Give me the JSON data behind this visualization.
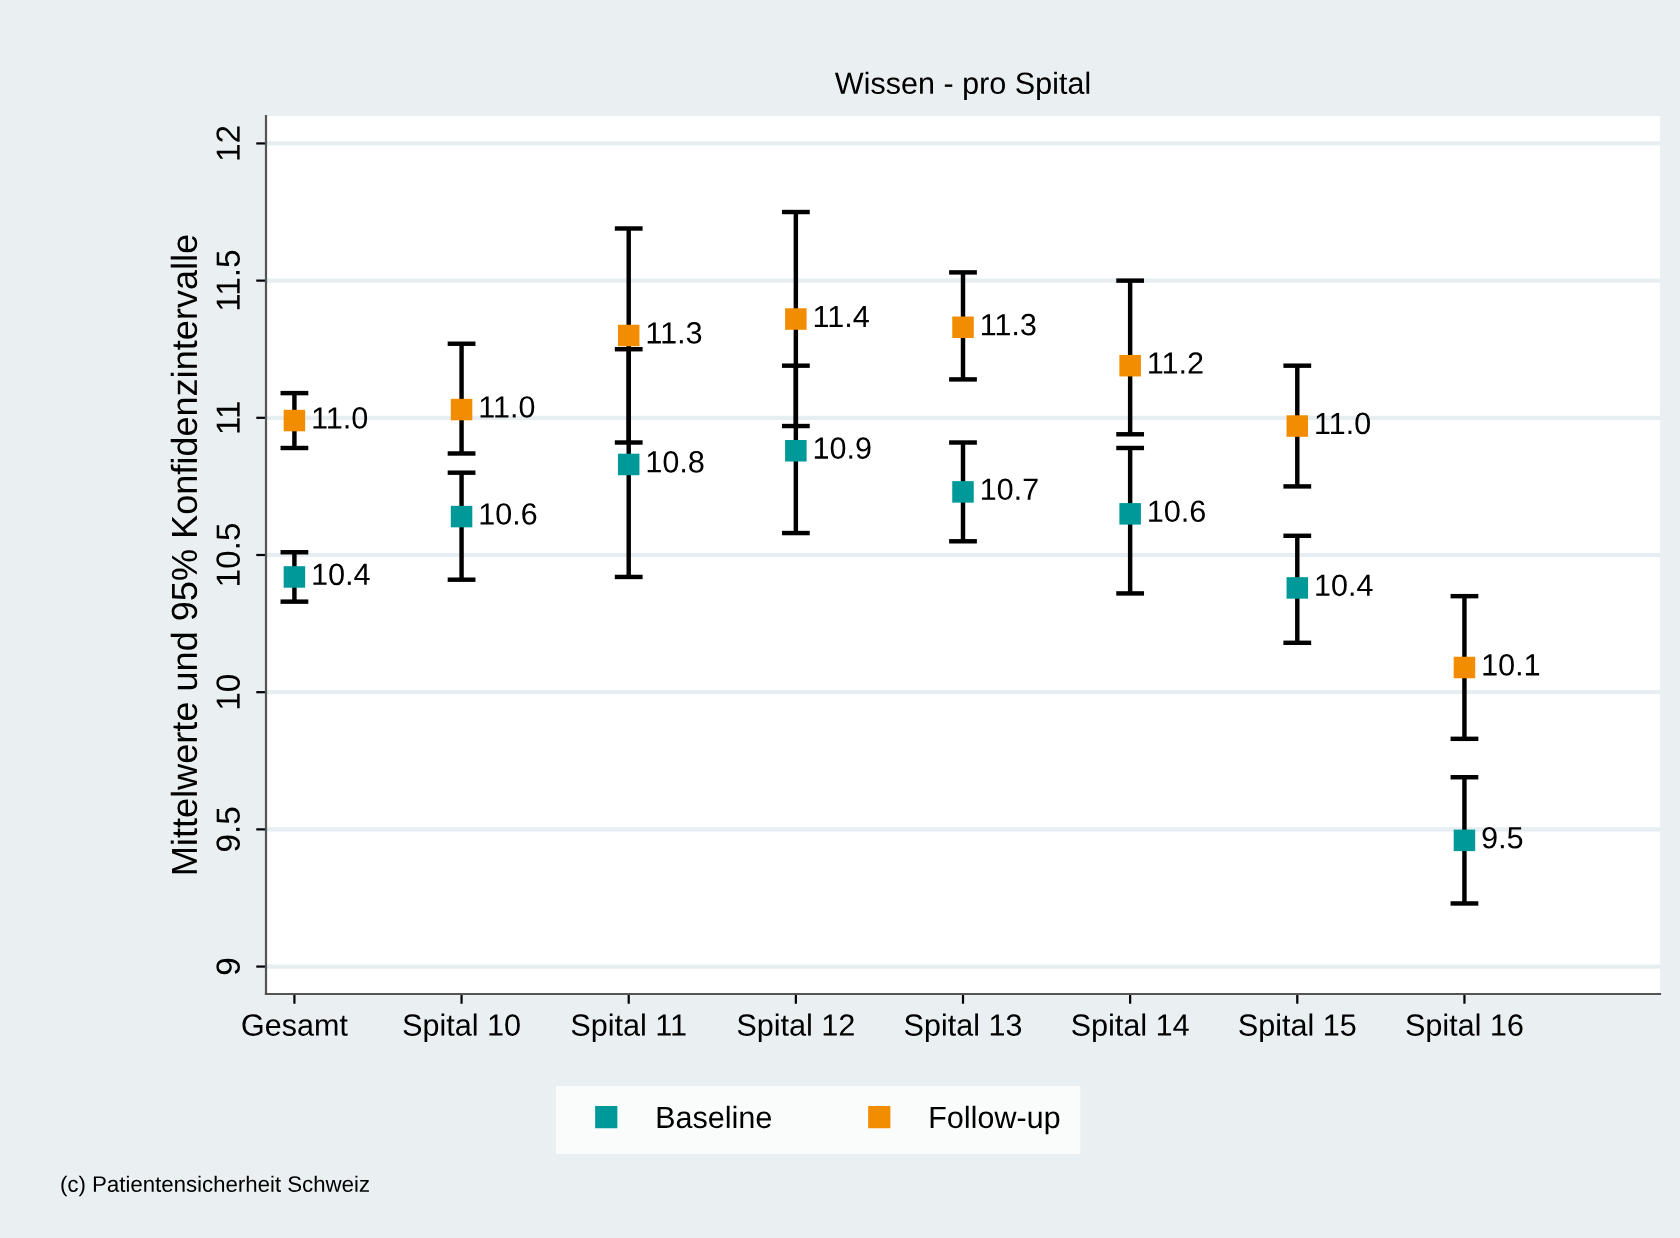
{
  "chart_data": {
    "type": "scatter",
    "title": "Wissen - pro Spital",
    "ylabel": "Mittelwerte und 95% Konfidenzintervalle",
    "categories": [
      "Gesamt",
      "Spital 10",
      "Spital 11",
      "Spital 12",
      "Spital 13",
      "Spital 14",
      "Spital 15",
      "Spital 16"
    ],
    "series": [
      {
        "name": "Baseline",
        "color": "#009999",
        "values": [
          10.42,
          10.64,
          10.83,
          10.88,
          10.73,
          10.65,
          10.38,
          9.46
        ],
        "errors": [
          [
            10.33,
            10.51
          ],
          [
            10.41,
            10.8
          ],
          [
            10.42,
            11.25
          ],
          [
            10.58,
            11.19
          ],
          [
            10.55,
            10.91
          ],
          [
            10.36,
            10.89
          ],
          [
            10.18,
            10.57
          ],
          [
            9.23,
            9.69
          ]
        ],
        "value_labels": [
          "10.4",
          "10.6",
          "10.8",
          "10.9",
          "10.7",
          "10.6",
          "10.4",
          "9.5"
        ]
      },
      {
        "name": "Follow-up",
        "color": "#f28c00",
        "values": [
          10.99,
          11.03,
          11.3,
          11.36,
          11.33,
          11.19,
          10.97,
          10.09
        ],
        "errors": [
          [
            10.89,
            11.09
          ],
          [
            10.87,
            11.27
          ],
          [
            10.91,
            11.69
          ],
          [
            10.97,
            11.75
          ],
          [
            11.14,
            11.53
          ],
          [
            10.94,
            11.5
          ],
          [
            10.75,
            11.19
          ],
          [
            9.83,
            10.35
          ]
        ],
        "value_labels": [
          "11.0",
          "11.0",
          "11.3",
          "11.4",
          "11.3",
          "11.2",
          "11.0",
          "10.1"
        ]
      }
    ],
    "ylim": [
      8.9,
      12.1
    ],
    "yticks": [
      9,
      {
        "value": 9.5,
        "label": "9.5"
      },
      10,
      {
        "value": 10.5,
        "label": "10.5"
      },
      11,
      {
        "value": 11.5,
        "label": "11.5"
      },
      12
    ],
    "grid": "y",
    "legend": "bottom",
    "marker": "square",
    "annotations": [
      "(c) Patientensicherheit Schweiz"
    ]
  }
}
